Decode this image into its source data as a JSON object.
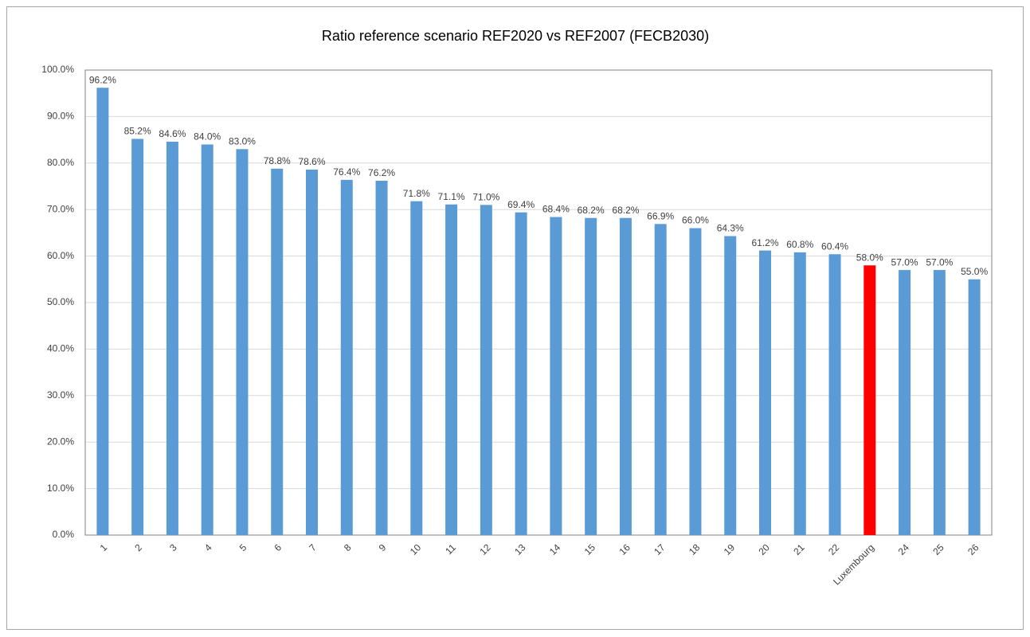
{
  "chart_data": {
    "type": "bar",
    "title": "Ratio reference scenario REF2020 vs REF2007 (FECB2030)",
    "categories": [
      "1",
      "2",
      "3",
      "4",
      "5",
      "6",
      "7",
      "8",
      "9",
      "10",
      "11",
      "12",
      "13",
      "14",
      "15",
      "16",
      "17",
      "18",
      "19",
      "20",
      "21",
      "22",
      "Luxembourg",
      "24",
      "25",
      "26"
    ],
    "values": [
      96.2,
      85.2,
      84.6,
      84.0,
      83.0,
      78.8,
      78.6,
      76.4,
      76.2,
      71.8,
      71.1,
      71.0,
      69.4,
      68.4,
      68.2,
      68.2,
      66.9,
      66.0,
      64.3,
      61.2,
      60.8,
      60.4,
      58.0,
      57.0,
      57.0,
      55.0
    ],
    "value_labels": [
      "96.2%",
      "85.2%",
      "84.6%",
      "84.0%",
      "83.0%",
      "78.8%",
      "78.6%",
      "76.4%",
      "76.2%",
      "71.8%",
      "71.1%",
      "71.0%",
      "69.4%",
      "68.4%",
      "68.2%",
      "68.2%",
      "66.9%",
      "66.0%",
      "64.3%",
      "61.2%",
      "60.8%",
      "60.4%",
      "58.0%",
      "57.0%",
      "57.0%",
      "55.0%"
    ],
    "colors": [
      "#5b9bd5",
      "#5b9bd5",
      "#5b9bd5",
      "#5b9bd5",
      "#5b9bd5",
      "#5b9bd5",
      "#5b9bd5",
      "#5b9bd5",
      "#5b9bd5",
      "#5b9bd5",
      "#5b9bd5",
      "#5b9bd5",
      "#5b9bd5",
      "#5b9bd5",
      "#5b9bd5",
      "#5b9bd5",
      "#5b9bd5",
      "#5b9bd5",
      "#5b9bd5",
      "#5b9bd5",
      "#5b9bd5",
      "#5b9bd5",
      "#ff0000",
      "#5b9bd5",
      "#5b9bd5",
      "#5b9bd5"
    ],
    "ylim": [
      0,
      100
    ],
    "yticks": [
      {
        "value": 0,
        "label": "0.0%"
      },
      {
        "value": 10,
        "label": "10.0%"
      },
      {
        "value": 20,
        "label": "20.0%"
      },
      {
        "value": 30,
        "label": "30.0%"
      },
      {
        "value": 40,
        "label": "40.0%"
      },
      {
        "value": 50,
        "label": "50.0%"
      },
      {
        "value": 60,
        "label": "60.0%"
      },
      {
        "value": 70,
        "label": "70.0%"
      },
      {
        "value": 80,
        "label": "80.0%"
      },
      {
        "value": 90,
        "label": "90.0%"
      },
      {
        "value": 100,
        "label": "100.0%"
      }
    ],
    "grid": true
  }
}
